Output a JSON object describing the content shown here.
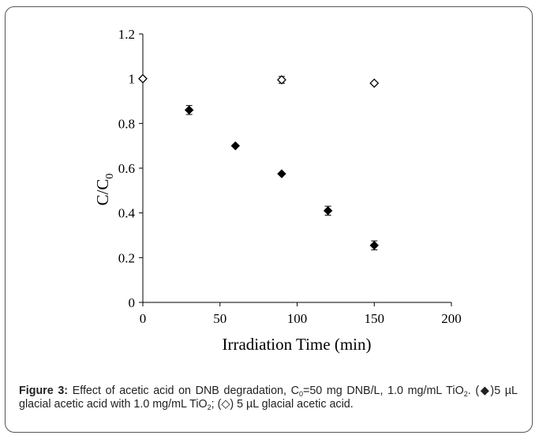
{
  "chart_data": {
    "type": "scatter",
    "xlabel": "Irradiation Time (min)",
    "ylabel": {
      "base": "C/C",
      "sub": "0"
    },
    "xlim": [
      0,
      200
    ],
    "ylim": [
      0,
      1.2
    ],
    "x_ticks": [
      "0",
      "50",
      "100",
      "150",
      "200"
    ],
    "y_ticks": [
      "0",
      "0.2",
      "0.4",
      "0.6",
      "0.8",
      "1",
      "1.2"
    ],
    "grid": false,
    "series": [
      {
        "marker": "filled-diamond",
        "color": "#000000",
        "points": [
          {
            "x": 0,
            "y": 1.0,
            "err": 0.005
          },
          {
            "x": 30,
            "y": 0.86,
            "err": 0.02
          },
          {
            "x": 60,
            "y": 0.7,
            "err": 0.005
          },
          {
            "x": 90,
            "y": 0.575,
            "err": 0.005
          },
          {
            "x": 120,
            "y": 0.41,
            "err": 0.02
          },
          {
            "x": 150,
            "y": 0.255,
            "err": 0.02
          }
        ]
      },
      {
        "marker": "open-diamond",
        "color": "#000000",
        "points": [
          {
            "x": 0,
            "y": 1.0,
            "err": 0.005
          },
          {
            "x": 90,
            "y": 0.995,
            "err": 0.015
          },
          {
            "x": 150,
            "y": 0.98,
            "err": 0.005
          }
        ]
      }
    ]
  },
  "caption": {
    "label": "Figure 3:",
    "t1": " Effect of acetic acid on DNB degradation, C",
    "s1": "0",
    "t2": "=50 mg DNB/L, 1.0 mg/mL TiO",
    "s2": "2",
    "t3": ". (◆)5 µL glacial acetic acid with 1.0 mg/mL TiO",
    "s3": "2",
    "t4": "; (◇) 5 µL glacial acetic acid."
  }
}
